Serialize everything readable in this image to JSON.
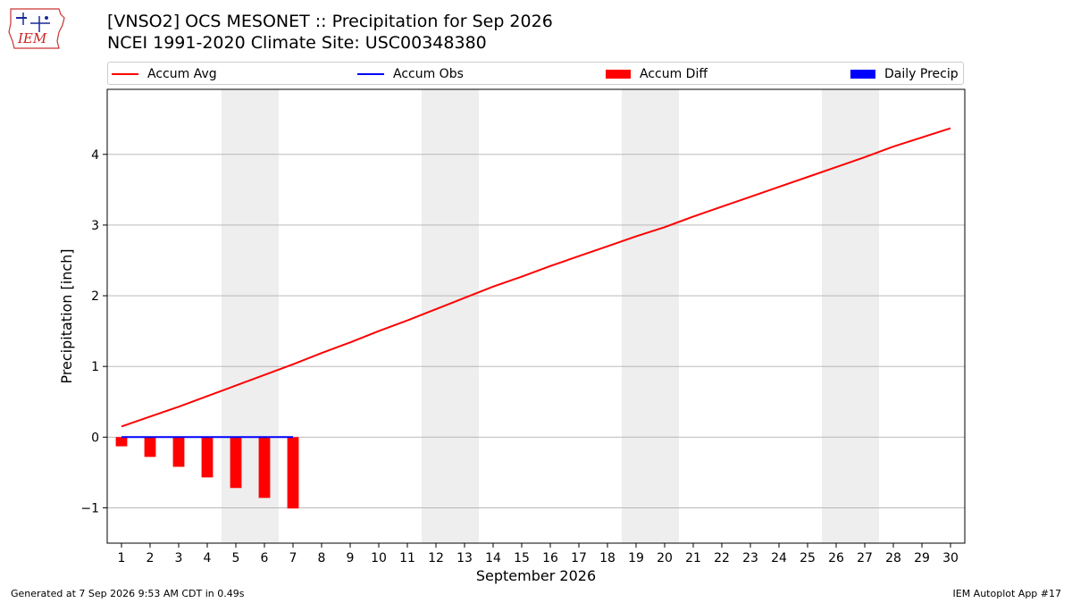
{
  "header": {
    "title_line1": "[VNSO2] OCS MESONET :: Precipitation for Sep 2026",
    "title_line2": "NCEI 1991-2020 Climate Site: USC00348380",
    "logo_text": "IEM"
  },
  "legend": {
    "accum_avg": "Accum Avg",
    "accum_obs": "Accum Obs",
    "accum_diff": "Accum Diff",
    "daily_precip": "Daily Precip"
  },
  "footer": {
    "generated": "Generated at 7 Sep 2026 9:53 AM CDT in 0.49s",
    "app": "IEM Autoplot App #17"
  },
  "colors": {
    "accum_avg": "#ff0000",
    "accum_obs": "#0000ff",
    "accum_diff": "#ff0000",
    "daily_precip": "#0000ff",
    "weekend_shade": "#eeeeee",
    "grid": "#b0b0b0"
  },
  "chart_data": {
    "type": "line",
    "title": "[VNSO2] OCS MESONET :: Precipitation for Sep 2026",
    "subtitle": "NCEI 1991-2020 Climate Site: USC00348380",
    "xlabel": "September 2026",
    "ylabel": "Precipitation [inch]",
    "x": [
      1,
      2,
      3,
      4,
      5,
      6,
      7,
      8,
      9,
      10,
      11,
      12,
      13,
      14,
      15,
      16,
      17,
      18,
      19,
      20,
      21,
      22,
      23,
      24,
      25,
      26,
      27,
      28,
      29,
      30
    ],
    "xlim": [
      0.5,
      30.5
    ],
    "ylim": [
      -1.5,
      4.92
    ],
    "yticks": [
      -1,
      0,
      1,
      2,
      3,
      4
    ],
    "yticklabels": [
      "−1",
      "0",
      "1",
      "2",
      "3",
      "4"
    ],
    "grid": "horizontal",
    "legend_position": "top",
    "weekend_shading": [
      [
        4.5,
        6.5
      ],
      [
        11.5,
        13.5
      ],
      [
        18.5,
        20.5
      ],
      [
        25.5,
        27.5
      ]
    ],
    "series": [
      {
        "name": "Accum Avg",
        "kind": "line",
        "x": [
          1,
          2,
          3,
          4,
          5,
          6,
          7,
          8,
          9,
          10,
          11,
          12,
          13,
          14,
          15,
          16,
          17,
          18,
          19,
          20,
          21,
          22,
          23,
          24,
          25,
          26,
          27,
          28,
          29,
          30
        ],
        "values": [
          0.15,
          0.29,
          0.43,
          0.58,
          0.73,
          0.88,
          1.03,
          1.19,
          1.34,
          1.5,
          1.65,
          1.81,
          1.97,
          2.13,
          2.27,
          2.42,
          2.56,
          2.7,
          2.84,
          2.97,
          3.12,
          3.26,
          3.4,
          3.54,
          3.68,
          3.82,
          3.96,
          4.11,
          4.24,
          4.37
        ]
      },
      {
        "name": "Accum Obs",
        "kind": "line",
        "x": [
          1,
          2,
          3,
          4,
          5,
          6,
          7
        ],
        "values": [
          0,
          0,
          0,
          0,
          0,
          0,
          0
        ]
      },
      {
        "name": "Accum Diff",
        "kind": "bar",
        "x": [
          1,
          2,
          3,
          4,
          5,
          6,
          7
        ],
        "values": [
          -0.13,
          -0.28,
          -0.42,
          -0.57,
          -0.72,
          -0.86,
          -1.01
        ]
      },
      {
        "name": "Daily Precip",
        "kind": "bar",
        "x": [
          1,
          2,
          3,
          4,
          5,
          6,
          7
        ],
        "values": [
          0,
          0,
          0,
          0,
          0,
          0,
          0
        ]
      }
    ]
  }
}
